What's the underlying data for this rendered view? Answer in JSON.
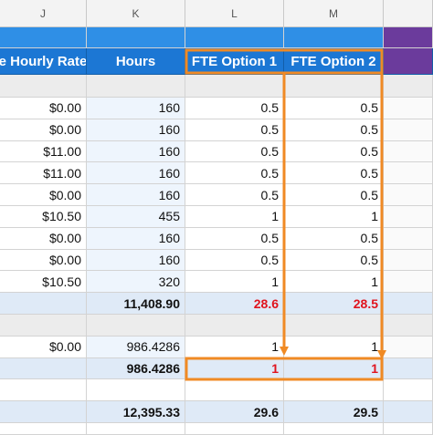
{
  "column_letters": [
    "J",
    "K",
    "L",
    "M"
  ],
  "header": [
    "e Hourly Rate",
    "Hours",
    "FTE Option 1",
    "FTE Option 2"
  ],
  "section_1_rows": [
    [
      "$0.00",
      "160",
      "0.5",
      "0.5"
    ],
    [
      "$0.00",
      "160",
      "0.5",
      "0.5"
    ],
    [
      "$11.00",
      "160",
      "0.5",
      "0.5"
    ],
    [
      "$11.00",
      "160",
      "0.5",
      "0.5"
    ],
    [
      "$0.00",
      "160",
      "0.5",
      "0.5"
    ],
    [
      "$10.50",
      "455",
      "1",
      "1"
    ],
    [
      "$0.00",
      "160",
      "0.5",
      "0.5"
    ],
    [
      "$0.00",
      "160",
      "0.5",
      "0.5"
    ],
    [
      "$10.50",
      "320",
      "1",
      "1"
    ]
  ],
  "section_1_total": {
    "hours": "11,408.90",
    "fte_option_1": "28.6",
    "fte_option_2": "28.5"
  },
  "section_2_rows": [
    [
      "$0.00",
      "986.4286",
      "1",
      "1"
    ]
  ],
  "section_2_total": {
    "hours": "986.4286",
    "fte_option_1": "1",
    "fte_option_2": "1"
  },
  "grand_total": {
    "hours": "12,395.33",
    "fte_option_1": "29.6",
    "fte_option_2": "29.5"
  }
}
